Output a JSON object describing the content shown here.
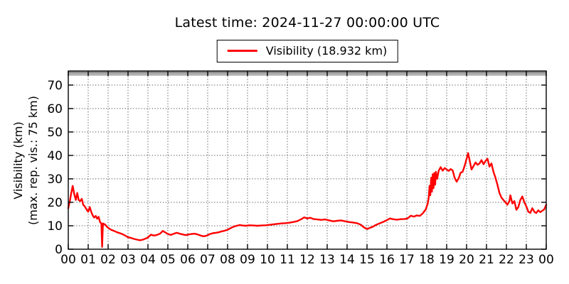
{
  "title": "Latest time: 2024-11-27 00:00:00 UTC",
  "legend": {
    "label": "Visibility (18.932 km)",
    "line_color": "#ff0000",
    "position": "top-center"
  },
  "y_axis_title_line1": "Visibility (km)",
  "y_axis_title_line2": "(max. rep. vis.: 75 km)",
  "colors": {
    "line": "#ff0000",
    "axis": "#000000",
    "grid": "#4a4a4a",
    "band": "#b0b0b0",
    "band_top": "#8e8e8e",
    "background": "#ffffff"
  },
  "chart_data": {
    "type": "line",
    "title": "Latest time: 2024-11-27 00:00:00 UTC",
    "ylabel": "Visibility (km) (max. rep. vis.: 75 km)",
    "x_tick_labels": [
      "00",
      "01",
      "02",
      "03",
      "04",
      "05",
      "06",
      "07",
      "08",
      "09",
      "10",
      "11",
      "12",
      "13",
      "14",
      "15",
      "16",
      "17",
      "18",
      "19",
      "20",
      "21",
      "22",
      "23",
      "00"
    ],
    "x_range_hours": [
      0,
      24
    ],
    "y_ticks": [
      0,
      10,
      20,
      30,
      40,
      50,
      60,
      70
    ],
    "ylim": [
      0,
      76
    ],
    "grid": true,
    "grid_style": "dotted",
    "legend_position": "top-center",
    "max_reported_visibility_km": 75,
    "latest_value_km": 18.932,
    "top_band_km": [
      74,
      76
    ],
    "series": [
      {
        "name": "Visibility (18.932 km)",
        "color": "#ff0000",
        "points": [
          [
            0.0,
            17.5
          ],
          [
            0.08,
            20.5
          ],
          [
            0.15,
            24.0
          ],
          [
            0.22,
            27.0
          ],
          [
            0.3,
            23.5
          ],
          [
            0.38,
            21.0
          ],
          [
            0.45,
            24.0
          ],
          [
            0.52,
            21.0
          ],
          [
            0.6,
            20.5
          ],
          [
            0.68,
            21.5
          ],
          [
            0.75,
            19.0
          ],
          [
            0.85,
            18.0
          ],
          [
            0.95,
            16.5
          ],
          [
            1.0,
            16.0
          ],
          [
            1.08,
            18.0
          ],
          [
            1.15,
            16.0
          ],
          [
            1.22,
            14.5
          ],
          [
            1.3,
            13.5
          ],
          [
            1.38,
            14.2
          ],
          [
            1.45,
            13.0
          ],
          [
            1.52,
            13.8
          ],
          [
            1.6,
            11.5
          ],
          [
            1.66,
            11.0
          ],
          [
            1.7,
            1.0
          ],
          [
            1.74,
            11.0
          ],
          [
            1.85,
            10.5
          ],
          [
            1.95,
            9.5
          ],
          [
            2.05,
            8.8
          ],
          [
            2.15,
            8.3
          ],
          [
            2.3,
            7.8
          ],
          [
            2.45,
            7.2
          ],
          [
            2.6,
            6.8
          ],
          [
            2.75,
            6.3
          ],
          [
            2.9,
            5.6
          ],
          [
            3.0,
            5.1
          ],
          [
            3.15,
            4.8
          ],
          [
            3.3,
            4.4
          ],
          [
            3.45,
            4.1
          ],
          [
            3.6,
            3.8
          ],
          [
            3.75,
            4.1
          ],
          [
            3.9,
            4.6
          ],
          [
            4.0,
            5.0
          ],
          [
            4.15,
            6.2
          ],
          [
            4.3,
            5.8
          ],
          [
            4.45,
            6.1
          ],
          [
            4.6,
            6.6
          ],
          [
            4.75,
            7.8
          ],
          [
            4.9,
            7.0
          ],
          [
            5.0,
            6.5
          ],
          [
            5.15,
            6.1
          ],
          [
            5.3,
            6.6
          ],
          [
            5.45,
            7.0
          ],
          [
            5.6,
            6.6
          ],
          [
            5.75,
            6.3
          ],
          [
            5.9,
            6.0
          ],
          [
            6.05,
            6.3
          ],
          [
            6.2,
            6.5
          ],
          [
            6.35,
            6.6
          ],
          [
            6.5,
            6.3
          ],
          [
            6.65,
            5.8
          ],
          [
            6.8,
            5.5
          ],
          [
            6.95,
            5.8
          ],
          [
            7.1,
            6.4
          ],
          [
            7.25,
            6.8
          ],
          [
            7.4,
            7.0
          ],
          [
            7.55,
            7.2
          ],
          [
            7.7,
            7.6
          ],
          [
            7.85,
            7.9
          ],
          [
            8.0,
            8.3
          ],
          [
            8.15,
            9.0
          ],
          [
            8.3,
            9.6
          ],
          [
            8.45,
            10.0
          ],
          [
            8.6,
            10.3
          ],
          [
            8.75,
            10.1
          ],
          [
            8.9,
            10.0
          ],
          [
            9.1,
            10.2
          ],
          [
            9.3,
            10.1
          ],
          [
            9.5,
            10.0
          ],
          [
            9.7,
            10.1
          ],
          [
            9.9,
            10.2
          ],
          [
            10.1,
            10.4
          ],
          [
            10.3,
            10.6
          ],
          [
            10.5,
            10.8
          ],
          [
            10.7,
            11.0
          ],
          [
            10.9,
            11.1
          ],
          [
            11.1,
            11.3
          ],
          [
            11.3,
            11.6
          ],
          [
            11.5,
            12.0
          ],
          [
            11.7,
            12.8
          ],
          [
            11.85,
            13.6
          ],
          [
            12.0,
            13.1
          ],
          [
            12.15,
            13.4
          ],
          [
            12.3,
            12.9
          ],
          [
            12.5,
            12.7
          ],
          [
            12.7,
            12.5
          ],
          [
            12.9,
            12.7
          ],
          [
            13.1,
            12.3
          ],
          [
            13.3,
            11.9
          ],
          [
            13.5,
            12.1
          ],
          [
            13.7,
            12.3
          ],
          [
            13.9,
            11.9
          ],
          [
            14.1,
            11.6
          ],
          [
            14.3,
            11.4
          ],
          [
            14.5,
            11.1
          ],
          [
            14.7,
            10.4
          ],
          [
            14.85,
            9.3
          ],
          [
            15.0,
            8.6
          ],
          [
            15.15,
            9.1
          ],
          [
            15.3,
            9.6
          ],
          [
            15.45,
            10.4
          ],
          [
            15.6,
            10.9
          ],
          [
            15.8,
            11.6
          ],
          [
            16.0,
            12.4
          ],
          [
            16.15,
            13.1
          ],
          [
            16.3,
            12.8
          ],
          [
            16.5,
            12.6
          ],
          [
            16.7,
            12.8
          ],
          [
            16.9,
            12.9
          ],
          [
            17.05,
            13.2
          ],
          [
            17.2,
            14.3
          ],
          [
            17.35,
            13.9
          ],
          [
            17.5,
            14.4
          ],
          [
            17.65,
            14.2
          ],
          [
            17.8,
            15.3
          ],
          [
            17.95,
            17.0
          ],
          [
            18.05,
            19.5
          ],
          [
            18.1,
            22.0
          ],
          [
            18.14,
            27.0
          ],
          [
            18.18,
            23.0
          ],
          [
            18.22,
            30.5
          ],
          [
            18.26,
            24.5
          ],
          [
            18.3,
            32.0
          ],
          [
            18.34,
            26.0
          ],
          [
            18.38,
            32.5
          ],
          [
            18.42,
            27.5
          ],
          [
            18.46,
            33.0
          ],
          [
            18.52,
            30.0
          ],
          [
            18.6,
            33.5
          ],
          [
            18.7,
            35.0
          ],
          [
            18.8,
            33.5
          ],
          [
            18.9,
            34.6
          ],
          [
            19.0,
            34.0
          ],
          [
            19.1,
            33.4
          ],
          [
            19.2,
            34.2
          ],
          [
            19.3,
            33.6
          ],
          [
            19.4,
            30.5
          ],
          [
            19.5,
            28.8
          ],
          [
            19.6,
            30.2
          ],
          [
            19.7,
            32.6
          ],
          [
            19.8,
            33.0
          ],
          [
            19.9,
            35.5
          ],
          [
            20.0,
            38.5
          ],
          [
            20.08,
            41.0
          ],
          [
            20.15,
            38.0
          ],
          [
            20.25,
            34.0
          ],
          [
            20.35,
            35.5
          ],
          [
            20.45,
            37.0
          ],
          [
            20.55,
            36.0
          ],
          [
            20.65,
            36.6
          ],
          [
            20.75,
            38.0
          ],
          [
            20.85,
            36.2
          ],
          [
            20.95,
            37.6
          ],
          [
            21.05,
            38.6
          ],
          [
            21.15,
            35.2
          ],
          [
            21.25,
            36.6
          ],
          [
            21.35,
            33.0
          ],
          [
            21.45,
            30.5
          ],
          [
            21.55,
            27.5
          ],
          [
            21.65,
            24.0
          ],
          [
            21.75,
            22.0
          ],
          [
            21.85,
            21.0
          ],
          [
            21.95,
            20.0
          ],
          [
            22.05,
            19.0
          ],
          [
            22.15,
            20.5
          ],
          [
            22.2,
            23.0
          ],
          [
            22.3,
            19.5
          ],
          [
            22.4,
            20.5
          ],
          [
            22.5,
            16.8
          ],
          [
            22.6,
            18.0
          ],
          [
            22.7,
            21.0
          ],
          [
            22.8,
            22.5
          ],
          [
            22.9,
            20.0
          ],
          [
            23.0,
            18.3
          ],
          [
            23.1,
            16.0
          ],
          [
            23.2,
            15.5
          ],
          [
            23.3,
            17.5
          ],
          [
            23.4,
            16.0
          ],
          [
            23.5,
            15.4
          ],
          [
            23.6,
            16.6
          ],
          [
            23.7,
            15.8
          ],
          [
            23.8,
            16.4
          ],
          [
            23.9,
            17.0
          ],
          [
            24.0,
            18.932
          ]
        ]
      }
    ]
  }
}
